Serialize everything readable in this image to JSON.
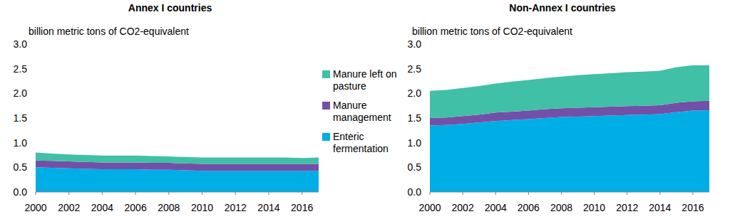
{
  "chart_data": [
    {
      "type": "area",
      "stacked": true,
      "title": "Annex I countries",
      "y_label": "billion metric tons of CO2-equivalent",
      "x": [
        2000,
        2001,
        2002,
        2003,
        2004,
        2005,
        2006,
        2007,
        2008,
        2009,
        2010,
        2011,
        2012,
        2013,
        2014,
        2015,
        2016,
        2017
      ],
      "xlim": [
        2000,
        2017
      ],
      "xticks": [
        2000,
        2002,
        2004,
        2006,
        2008,
        2010,
        2012,
        2014,
        2016
      ],
      "ylim": [
        0,
        3
      ],
      "yticks": [
        {
          "value": 0,
          "label": "0.0"
        },
        0.5,
        {
          "value": 1,
          "label": "1.0"
        },
        1.5,
        {
          "value": 2,
          "label": "2.0"
        },
        2.5,
        {
          "value": 3,
          "label": "3.0"
        }
      ],
      "grid": false,
      "legend": "right",
      "series": [
        {
          "name": "Enteric fermentation",
          "color": "#00aee6",
          "values": [
            0.5,
            0.49,
            0.48,
            0.47,
            0.46,
            0.46,
            0.46,
            0.45,
            0.45,
            0.44,
            0.43,
            0.43,
            0.43,
            0.43,
            0.43,
            0.43,
            0.43,
            0.43
          ]
        },
        {
          "name": "Manure management",
          "color": "#7350a8",
          "values": [
            0.14,
            0.14,
            0.14,
            0.14,
            0.14,
            0.14,
            0.14,
            0.14,
            0.14,
            0.14,
            0.14,
            0.14,
            0.14,
            0.14,
            0.14,
            0.14,
            0.14,
            0.14
          ]
        },
        {
          "name": "Manure left on pasture",
          "color": "#40c0a6",
          "values": [
            0.16,
            0.15,
            0.14,
            0.14,
            0.14,
            0.14,
            0.14,
            0.14,
            0.13,
            0.13,
            0.13,
            0.13,
            0.13,
            0.13,
            0.13,
            0.13,
            0.12,
            0.13
          ]
        }
      ]
    },
    {
      "type": "area",
      "stacked": true,
      "title": "Non-Annex I countries",
      "y_label": "billion metric tons of CO2-equivalent",
      "x": [
        2000,
        2001,
        2002,
        2003,
        2004,
        2005,
        2006,
        2007,
        2008,
        2009,
        2010,
        2011,
        2012,
        2013,
        2014,
        2015,
        2016,
        2017
      ],
      "xlim": [
        2000,
        2017
      ],
      "xticks": [
        2000,
        2002,
        2004,
        2006,
        2008,
        2010,
        2012,
        2014,
        2016
      ],
      "ylim": [
        0,
        3
      ],
      "yticks": [
        {
          "value": 0,
          "label": "0.0"
        },
        0.5,
        {
          "value": 1,
          "label": "1.0"
        },
        1.5,
        {
          "value": 2,
          "label": "2.0"
        },
        2.5,
        {
          "value": 3,
          "label": "3.0"
        }
      ],
      "grid": false,
      "series": [
        {
          "name": "Enteric fermentation",
          "color": "#00aee6",
          "values": [
            1.35,
            1.36,
            1.38,
            1.41,
            1.44,
            1.46,
            1.48,
            1.5,
            1.52,
            1.53,
            1.54,
            1.55,
            1.56,
            1.57,
            1.58,
            1.62,
            1.65,
            1.66
          ]
        },
        {
          "name": "Manure management",
          "color": "#7350a8",
          "values": [
            0.15,
            0.15,
            0.16,
            0.16,
            0.17,
            0.17,
            0.17,
            0.18,
            0.18,
            0.18,
            0.18,
            0.18,
            0.18,
            0.18,
            0.18,
            0.19,
            0.19,
            0.19
          ]
        },
        {
          "name": "Manure left on pasture",
          "color": "#40c0a6",
          "values": [
            0.55,
            0.56,
            0.57,
            0.58,
            0.59,
            0.61,
            0.62,
            0.63,
            0.64,
            0.66,
            0.67,
            0.68,
            0.69,
            0.69,
            0.7,
            0.72,
            0.73,
            0.72
          ]
        }
      ]
    }
  ]
}
